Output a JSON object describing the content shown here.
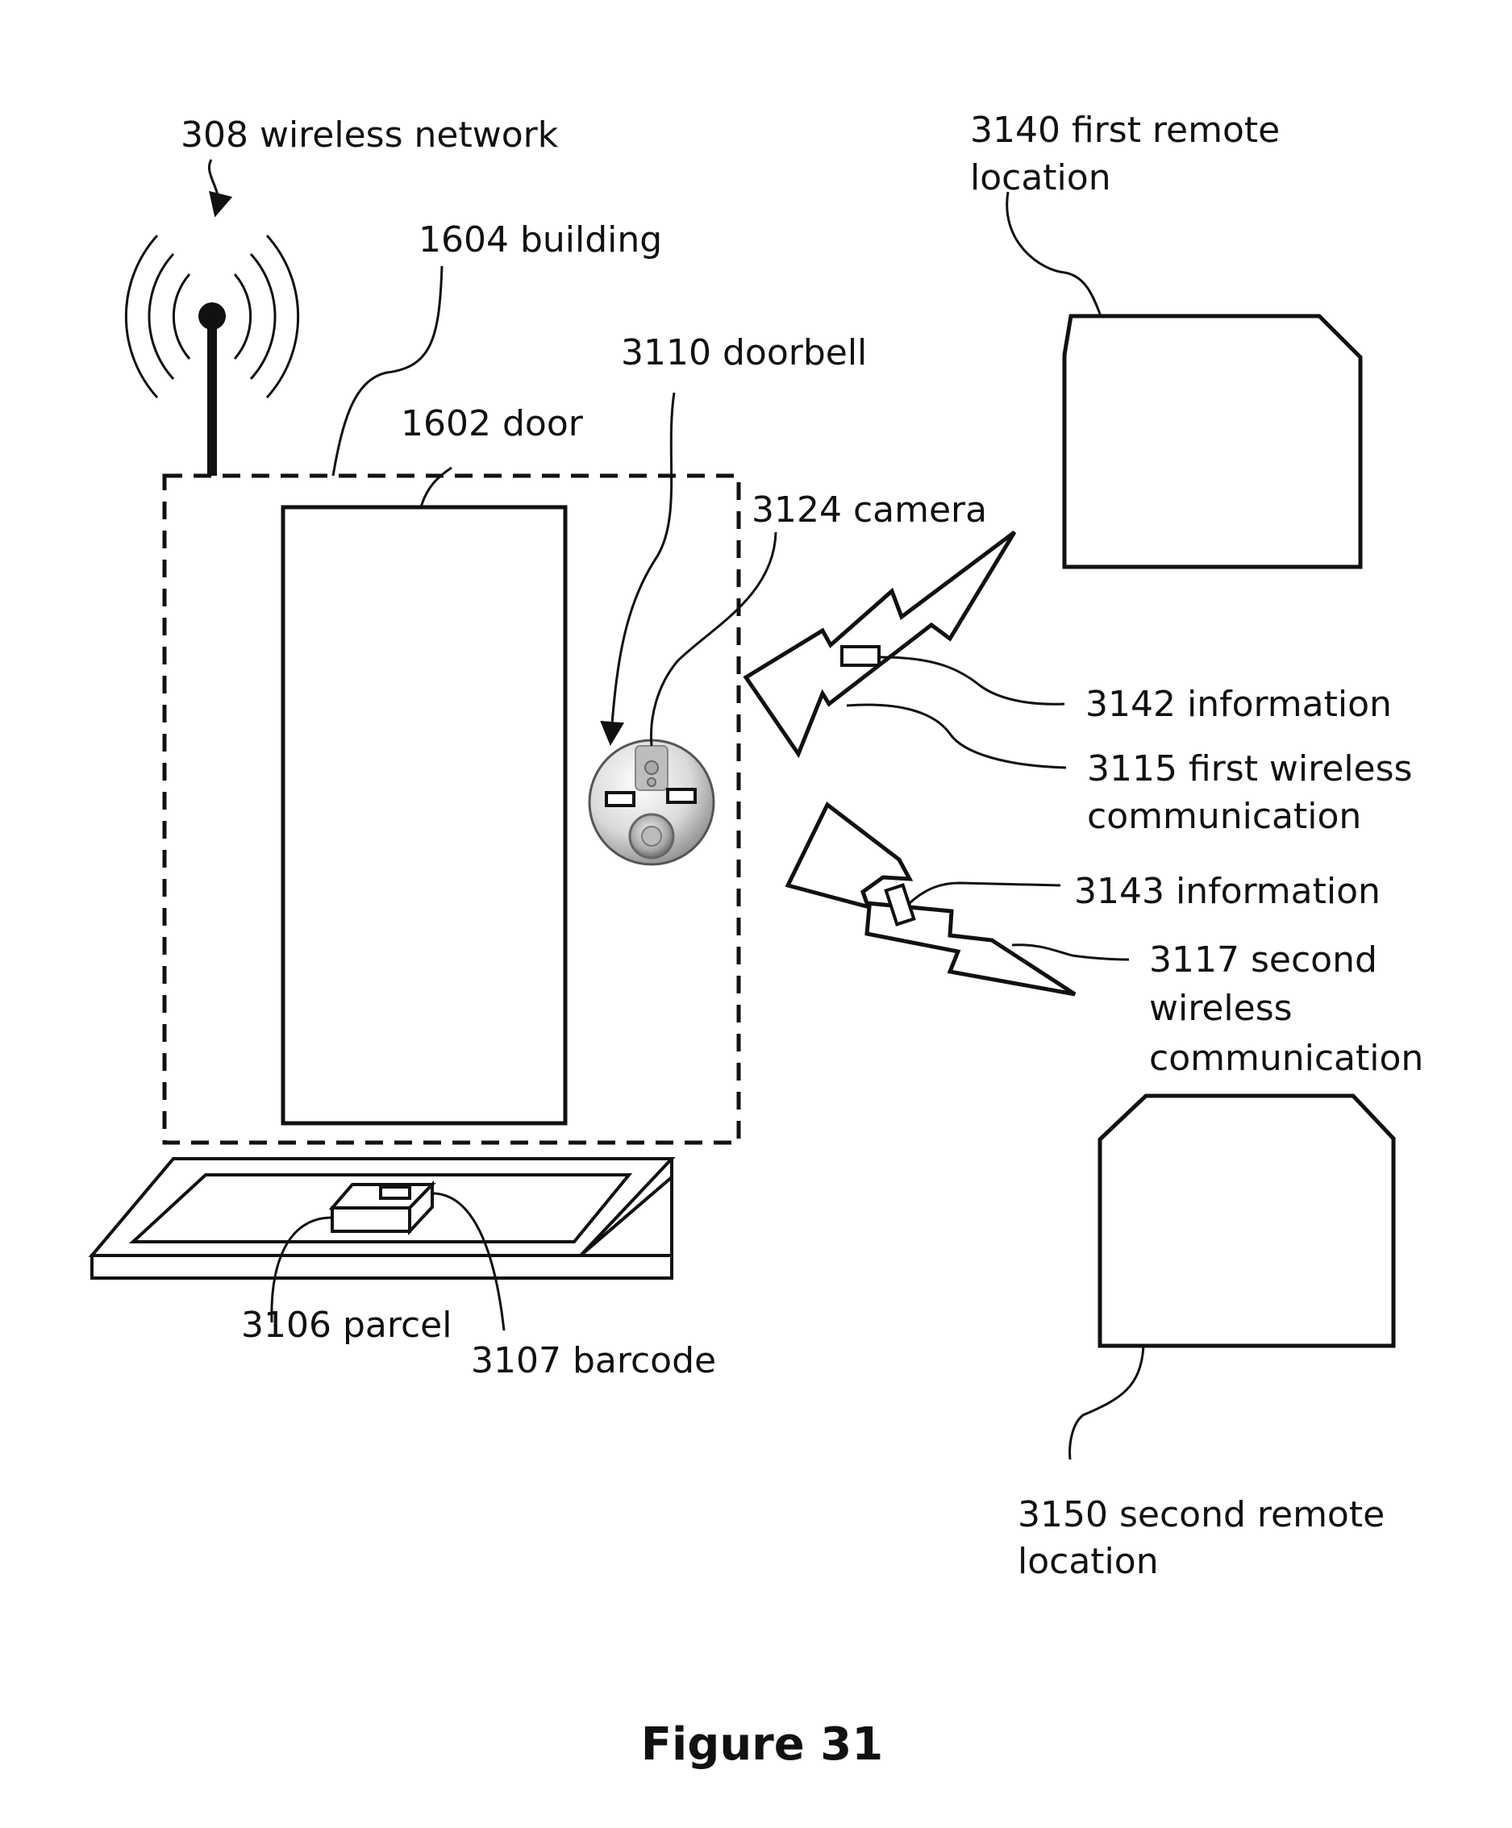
{
  "labels": {
    "wireless_network": "308 wireless network",
    "building": "1604 building",
    "doorbell": "3110 doorbell",
    "door": "1602  door",
    "camera": "3124 camera",
    "first_remote": [
      "3140 first remote",
      "location"
    ],
    "info_3142": "3142 information",
    "first_wireless": [
      "3115 first wireless",
      "communication"
    ],
    "info_3143": "3143 information",
    "second_wireless": [
      "3117 second",
      "wireless",
      "communication"
    ],
    "second_remote": [
      "3150 second remote",
      "location"
    ],
    "parcel": "3106 parcel",
    "barcode": "3107 barcode"
  },
  "caption": "Figure 31"
}
